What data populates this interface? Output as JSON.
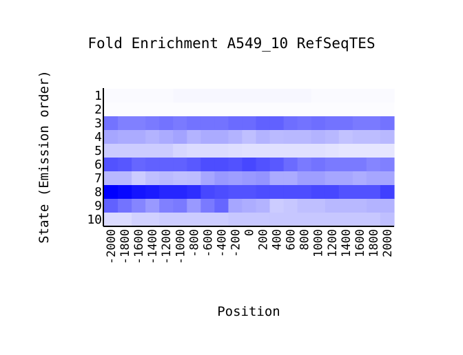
{
  "chart_data": {
    "type": "heatmap",
    "title": "Fold Enrichment A549_10 RefSeqTES",
    "xlabel": "Position",
    "ylabel": "State (Emission order)",
    "x_ticks": [
      "-2000",
      "-1800",
      "-1600",
      "-1400",
      "-1200",
      "-1000",
      "-800",
      "-600",
      "-400",
      "-200",
      "0",
      "200",
      "400",
      "600",
      "800",
      "1000",
      "1200",
      "1400",
      "1600",
      "1800",
      "2000"
    ],
    "y_ticks": [
      "1",
      "2",
      "3",
      "4",
      "5",
      "6",
      "7",
      "8",
      "9",
      "10"
    ],
    "color_low": "#ffffff",
    "color_high": "#0000ff",
    "values": [
      [
        0.02,
        0.02,
        0.02,
        0.02,
        0.02,
        0.03,
        0.03,
        0.03,
        0.03,
        0.03,
        0.03,
        0.03,
        0.03,
        0.03,
        0.03,
        0.02,
        0.02,
        0.02,
        0.02,
        0.02,
        0.02
      ],
      [
        0.01,
        0.01,
        0.01,
        0.01,
        0.01,
        0.01,
        0.01,
        0.01,
        0.01,
        0.01,
        0.01,
        0.01,
        0.01,
        0.01,
        0.01,
        0.01,
        0.01,
        0.01,
        0.01,
        0.01,
        0.01
      ],
      [
        0.55,
        0.5,
        0.5,
        0.52,
        0.55,
        0.52,
        0.55,
        0.55,
        0.55,
        0.58,
        0.58,
        0.62,
        0.62,
        0.57,
        0.55,
        0.57,
        0.55,
        0.55,
        0.52,
        0.52,
        0.55
      ],
      [
        0.35,
        0.33,
        0.33,
        0.3,
        0.33,
        0.36,
        0.3,
        0.33,
        0.33,
        0.3,
        0.25,
        0.3,
        0.27,
        0.28,
        0.28,
        0.3,
        0.28,
        0.24,
        0.26,
        0.26,
        0.28
      ],
      [
        0.2,
        0.2,
        0.2,
        0.2,
        0.2,
        0.16,
        0.14,
        0.14,
        0.14,
        0.13,
        0.12,
        0.12,
        0.12,
        0.12,
        0.12,
        0.12,
        0.11,
        0.1,
        0.1,
        0.1,
        0.1
      ],
      [
        0.68,
        0.66,
        0.6,
        0.62,
        0.62,
        0.62,
        0.65,
        0.7,
        0.7,
        0.68,
        0.72,
        0.68,
        0.65,
        0.58,
        0.52,
        0.55,
        0.52,
        0.52,
        0.52,
        0.48,
        0.5
      ],
      [
        0.28,
        0.28,
        0.2,
        0.25,
        0.27,
        0.25,
        0.26,
        0.35,
        0.4,
        0.38,
        0.4,
        0.42,
        0.33,
        0.33,
        0.38,
        0.38,
        0.35,
        0.35,
        0.32,
        0.35,
        0.35
      ],
      [
        1.0,
        0.97,
        0.92,
        0.9,
        0.85,
        0.85,
        0.82,
        0.72,
        0.7,
        0.68,
        0.68,
        0.7,
        0.7,
        0.7,
        0.7,
        0.72,
        0.72,
        0.68,
        0.68,
        0.68,
        0.75
      ],
      [
        0.62,
        0.55,
        0.48,
        0.4,
        0.5,
        0.52,
        0.4,
        0.52,
        0.6,
        0.35,
        0.32,
        0.3,
        0.2,
        0.22,
        0.25,
        0.25,
        0.28,
        0.28,
        0.28,
        0.3,
        0.3
      ],
      [
        0.14,
        0.14,
        0.18,
        0.18,
        0.2,
        0.2,
        0.2,
        0.2,
        0.2,
        0.22,
        0.22,
        0.22,
        0.22,
        0.22,
        0.22,
        0.22,
        0.22,
        0.22,
        0.22,
        0.22,
        0.25
      ]
    ]
  }
}
